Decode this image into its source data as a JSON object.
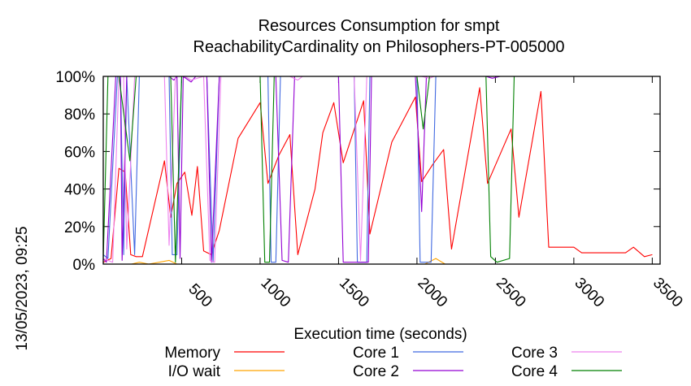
{
  "chart_data": {
    "type": "line",
    "title": "Resources Consumption for smpt",
    "subtitle": "ReachabilityCardinality on Philosophers-PT-005000",
    "xlabel": "Execution time (seconds)",
    "ylabel": "",
    "timestamp": "13/05/2023, 09:25",
    "xlim": [
      0,
      3550
    ],
    "ylim": [
      0,
      100
    ],
    "x_ticks": [
      500,
      1000,
      1500,
      2000,
      2500,
      3000,
      3500
    ],
    "x_tick_labels": [
      "500",
      "1000",
      "1500",
      "2000",
      "2500",
      "3000",
      "3500"
    ],
    "y_ticks": [
      0,
      20,
      40,
      60,
      80,
      100
    ],
    "y_tick_labels": [
      "0%",
      "20%",
      "40%",
      "60%",
      "80%",
      "100%"
    ],
    "legend_position": "bottom",
    "series": [
      {
        "name": "Memory",
        "color": "#ff0000",
        "points": [
          [
            0,
            1
          ],
          [
            50,
            3
          ],
          [
            100,
            51
          ],
          [
            140,
            49
          ],
          [
            175,
            5
          ],
          [
            210,
            4
          ],
          [
            250,
            4
          ],
          [
            390,
            55
          ],
          [
            430,
            25
          ],
          [
            470,
            43
          ],
          [
            520,
            49
          ],
          [
            565,
            26
          ],
          [
            600,
            52
          ],
          [
            640,
            7
          ],
          [
            690,
            5
          ],
          [
            740,
            18
          ],
          [
            860,
            67
          ],
          [
            1000,
            86
          ],
          [
            1050,
            43
          ],
          [
            1120,
            58
          ],
          [
            1190,
            69
          ],
          [
            1240,
            5
          ],
          [
            1350,
            40
          ],
          [
            1400,
            70
          ],
          [
            1470,
            86
          ],
          [
            1530,
            54
          ],
          [
            1660,
            87
          ],
          [
            1700,
            16
          ],
          [
            1840,
            65
          ],
          [
            1990,
            89
          ],
          [
            2030,
            44
          ],
          [
            2100,
            53
          ],
          [
            2170,
            61
          ],
          [
            2220,
            8
          ],
          [
            2400,
            94
          ],
          [
            2450,
            43
          ],
          [
            2600,
            72
          ],
          [
            2650,
            25
          ],
          [
            2790,
            92
          ],
          [
            2840,
            9
          ],
          [
            3000,
            9
          ],
          [
            3050,
            6
          ],
          [
            3150,
            6
          ],
          [
            3200,
            6
          ],
          [
            3280,
            6
          ],
          [
            3330,
            6
          ],
          [
            3380,
            9
          ],
          [
            3450,
            4
          ],
          [
            3500,
            5
          ]
        ]
      },
      {
        "name": "I/O wait",
        "color": "#ffa500",
        "points": [
          [
            0,
            0
          ],
          [
            180,
            0
          ],
          [
            230,
            1
          ],
          [
            290,
            0
          ],
          [
            420,
            2
          ],
          [
            470,
            0
          ],
          [
            1000,
            0
          ],
          [
            2050,
            0
          ],
          [
            2120,
            3
          ],
          [
            2180,
            0
          ],
          [
            3500,
            0
          ]
        ]
      },
      {
        "name": "Core 1",
        "color": "#4169e1",
        "points": [
          [
            0,
            5
          ],
          [
            30,
            3
          ],
          [
            90,
            100
          ],
          [
            110,
            100
          ],
          [
            130,
            5
          ],
          [
            150,
            100
          ],
          [
            200,
            5
          ],
          [
            230,
            100
          ],
          [
            420,
            100
          ],
          [
            440,
            5
          ],
          [
            470,
            5
          ],
          [
            500,
            100
          ],
          [
            660,
            100
          ],
          [
            700,
            1
          ],
          [
            740,
            100
          ],
          [
            1050,
            100
          ],
          [
            1070,
            1
          ],
          [
            1100,
            1
          ],
          [
            1130,
            100
          ],
          [
            1600,
            100
          ],
          [
            1620,
            1
          ],
          [
            1680,
            1
          ],
          [
            1700,
            100
          ],
          [
            2000,
            100
          ],
          [
            2020,
            1
          ],
          [
            2090,
            1
          ],
          [
            2120,
            100
          ],
          [
            2500,
            100
          ],
          [
            2520,
            100
          ],
          [
            2700,
            100
          ],
          [
            3500,
            100
          ]
        ]
      },
      {
        "name": "Core 2",
        "color": "#9400d3",
        "points": [
          [
            0,
            3
          ],
          [
            20,
            1
          ],
          [
            80,
            100
          ],
          [
            110,
            100
          ],
          [
            120,
            2
          ],
          [
            150,
            100
          ],
          [
            230,
            100
          ],
          [
            420,
            100
          ],
          [
            450,
            98
          ],
          [
            470,
            100
          ],
          [
            490,
            3
          ],
          [
            510,
            100
          ],
          [
            560,
            97
          ],
          [
            590,
            100
          ],
          [
            660,
            100
          ],
          [
            690,
            1
          ],
          [
            740,
            100
          ],
          [
            1000,
            100
          ],
          [
            1100,
            100
          ],
          [
            1140,
            2
          ],
          [
            1180,
            1
          ],
          [
            1220,
            100
          ],
          [
            1500,
            100
          ],
          [
            1530,
            1
          ],
          [
            1690,
            1
          ],
          [
            1710,
            100
          ],
          [
            1990,
            100
          ],
          [
            2030,
            28
          ],
          [
            2060,
            100
          ],
          [
            2440,
            100
          ],
          [
            2480,
            99
          ],
          [
            2530,
            100
          ],
          [
            3500,
            100
          ]
        ]
      },
      {
        "name": "Core 3",
        "color": "#ee82ee",
        "points": [
          [
            0,
            3
          ],
          [
            60,
            1
          ],
          [
            100,
            100
          ],
          [
            130,
            100
          ],
          [
            150,
            8
          ],
          [
            200,
            100
          ],
          [
            240,
            100
          ],
          [
            360,
            100
          ],
          [
            390,
            100
          ],
          [
            420,
            10
          ],
          [
            460,
            100
          ],
          [
            520,
            100
          ],
          [
            560,
            98
          ],
          [
            640,
            100
          ],
          [
            680,
            2
          ],
          [
            710,
            1
          ],
          [
            750,
            100
          ],
          [
            1190,
            100
          ],
          [
            1240,
            98
          ],
          [
            1270,
            100
          ],
          [
            1600,
            100
          ],
          [
            1640,
            2
          ],
          [
            1680,
            100
          ],
          [
            2030,
            100
          ],
          [
            2080,
            99
          ],
          [
            2110,
            100
          ],
          [
            2440,
            100
          ],
          [
            2480,
            100
          ],
          [
            2520,
            100
          ],
          [
            3500,
            100
          ]
        ]
      },
      {
        "name": "Core 4",
        "color": "#008000",
        "points": [
          [
            0,
            2
          ],
          [
            30,
            100
          ],
          [
            100,
            100
          ],
          [
            170,
            55
          ],
          [
            210,
            100
          ],
          [
            430,
            100
          ],
          [
            460,
            1
          ],
          [
            500,
            100
          ],
          [
            1000,
            100
          ],
          [
            1030,
            1
          ],
          [
            1060,
            1
          ],
          [
            1090,
            100
          ],
          [
            2000,
            100
          ],
          [
            2040,
            72
          ],
          [
            2080,
            100
          ],
          [
            2440,
            100
          ],
          [
            2470,
            4
          ],
          [
            2510,
            1
          ],
          [
            2590,
            3
          ],
          [
            2620,
            100
          ],
          [
            3500,
            100
          ]
        ]
      }
    ]
  }
}
